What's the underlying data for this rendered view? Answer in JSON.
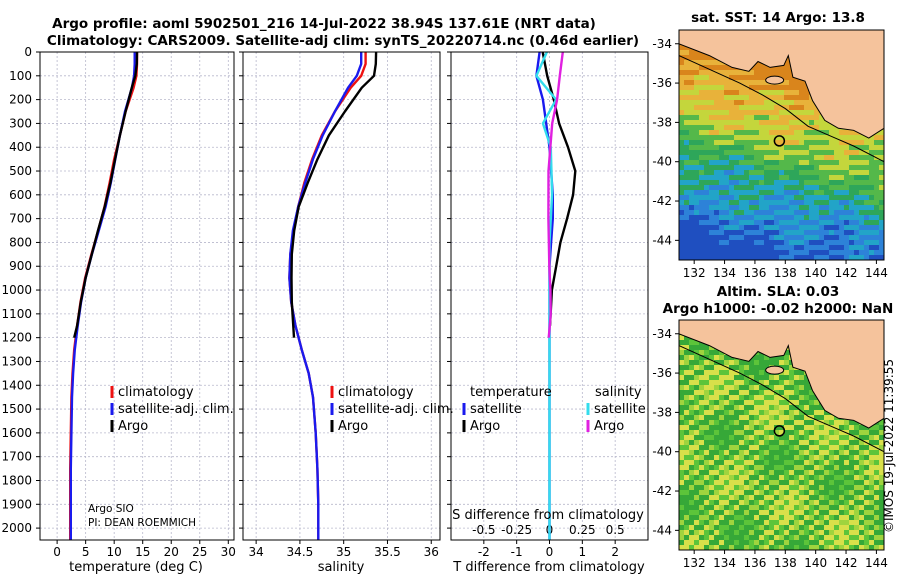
{
  "figure": {
    "title_line1": "Argo profile: aoml 5902501_216 14-Jul-2022 38.94S 137.61E (NRT data)",
    "title_line2": "Climatology: CARS2009. Satellite-adj clim: synTS_20220714.nc (0.46d earlier)",
    "credit": "©IMOS 19-Jul-2022 11:39:55",
    "argo_center": "Argo SIO",
    "pi_name": "PI: DEAN ROEMMICH"
  },
  "legends": {
    "climatology": "climatology",
    "satellite_adj": "satellite-adj. clim.",
    "argo": "Argo",
    "temperature_hdr": "temperature",
    "salinity_hdr": "salinity",
    "satellite": "satellite",
    "s_difference_label": "S difference from climatology"
  },
  "colors": {
    "climatology": "#ee1111",
    "satellite": "#1a1aee",
    "argo": "#000000",
    "sat_salinity": "#33dded",
    "argo_salinity": "#e020e0",
    "land": "#f5c39c",
    "grid": "#b8b8cc"
  },
  "chart_data": [
    {
      "type": "line",
      "xlabel": "temperature (deg C)",
      "ylabel": "",
      "xlim": [
        -3,
        31
      ],
      "ylim": [
        2050,
        0
      ],
      "xticks": [
        "0",
        "5",
        "10",
        "15",
        "20",
        "25",
        "30"
      ],
      "xtick_values": [
        0,
        5,
        10,
        15,
        20,
        25,
        30
      ],
      "yticks": [
        "0",
        "100",
        "200",
        "300",
        "400",
        "500",
        "600",
        "700",
        "800",
        "900",
        "1000",
        "1100",
        "1200",
        "1300",
        "1400",
        "1500",
        "1600",
        "1700",
        "1800",
        "1900",
        "2000"
      ],
      "ytick_values": [
        0,
        100,
        200,
        300,
        400,
        500,
        600,
        700,
        800,
        900,
        1000,
        1100,
        1200,
        1300,
        1400,
        1500,
        1600,
        1700,
        1800,
        1900,
        2000
      ],
      "series": [
        {
          "name": "climatology",
          "color": "#ee1111",
          "x": [
            14.0,
            14.0,
            13.9,
            13.4,
            12.0,
            11.0,
            10.0,
            9.2,
            8.3,
            7.2,
            6.0,
            4.9,
            4.1,
            3.5,
            3.0,
            2.7,
            2.5,
            2.4,
            2.3,
            2.3,
            2.3
          ],
          "y": [
            0,
            50,
            100,
            150,
            250,
            350,
            450,
            550,
            650,
            750,
            850,
            950,
            1050,
            1150,
            1250,
            1350,
            1450,
            1600,
            1750,
            1900,
            2050
          ]
        },
        {
          "name": "satellite-adj. clim.",
          "color": "#1a1aee",
          "x": [
            13.6,
            13.6,
            13.5,
            13.1,
            11.9,
            11.0,
            10.2,
            9.4,
            8.5,
            7.3,
            6.1,
            5.0,
            4.2,
            3.6,
            3.1,
            2.8,
            2.6,
            2.5,
            2.4,
            2.4,
            2.4
          ],
          "y": [
            0,
            50,
            100,
            150,
            250,
            350,
            450,
            550,
            650,
            750,
            850,
            950,
            1050,
            1150,
            1250,
            1350,
            1450,
            1600,
            1750,
            1900,
            2050
          ]
        },
        {
          "name": "Argo",
          "color": "#000000",
          "x": [
            13.8,
            13.8,
            13.7,
            13.2,
            12.1,
            11.1,
            10.3,
            9.5,
            8.5,
            7.3,
            6.2,
            5.1,
            4.3,
            3.7,
            3.2
          ],
          "y": [
            0,
            50,
            100,
            150,
            250,
            350,
            450,
            550,
            650,
            750,
            850,
            950,
            1050,
            1150,
            1200
          ]
        }
      ]
    },
    {
      "type": "line",
      "xlabel": "salinity",
      "xlim": [
        33.85,
        36.1
      ],
      "ylim": [
        2050,
        0
      ],
      "xticks": [
        "34",
        "34.5",
        "35",
        "35.5",
        "36"
      ],
      "xtick_values": [
        34,
        34.5,
        35,
        35.5,
        36
      ],
      "series": [
        {
          "name": "climatology",
          "color": "#ee1111",
          "x": [
            35.25,
            35.25,
            35.2,
            35.08,
            34.9,
            34.75,
            34.64,
            34.55,
            34.48,
            34.43,
            34.39,
            34.38,
            34.4,
            34.45,
            34.52,
            34.6,
            34.65,
            34.68,
            34.7,
            34.71,
            34.71
          ],
          "y": [
            0,
            50,
            100,
            150,
            250,
            350,
            450,
            550,
            650,
            750,
            850,
            950,
            1050,
            1150,
            1250,
            1350,
            1450,
            1600,
            1750,
            1900,
            2050
          ]
        },
        {
          "name": "satellite-adj. clim.",
          "color": "#1a1aee",
          "x": [
            35.2,
            35.2,
            35.15,
            35.05,
            34.9,
            34.76,
            34.65,
            34.56,
            34.48,
            34.42,
            34.39,
            34.38,
            34.4,
            34.45,
            34.52,
            34.6,
            34.65,
            34.68,
            34.7,
            34.71,
            34.71
          ],
          "y": [
            0,
            50,
            100,
            150,
            250,
            350,
            450,
            550,
            650,
            750,
            850,
            950,
            1050,
            1150,
            1250,
            1350,
            1450,
            1600,
            1750,
            1900,
            2050
          ]
        },
        {
          "name": "Argo",
          "color": "#000000",
          "x": [
            35.38,
            35.38,
            35.35,
            35.2,
            35.0,
            34.82,
            34.7,
            34.6,
            34.5,
            34.44,
            34.4,
            34.39,
            34.4,
            34.44
          ],
          "y": [
            0,
            50,
            100,
            150,
            250,
            350,
            450,
            550,
            650,
            750,
            850,
            950,
            1050,
            1200
          ]
        }
      ]
    },
    {
      "type": "line",
      "xlabel": "T difference from climatology",
      "xlim": [
        -3,
        3
      ],
      "ylim": [
        2050,
        0
      ],
      "xticks": [
        "-2",
        "-1",
        "0",
        "1",
        "2"
      ],
      "xtick_values": [
        -2,
        -1,
        0,
        1,
        2
      ],
      "s_ticks": [
        "-0.5",
        "-0.25",
        "0",
        "0.25",
        "0.5"
      ],
      "s_tick_values": [
        -0.5,
        -0.25,
        0,
        0.25,
        0.5
      ],
      "s_xlim": [
        -0.75,
        0.75
      ],
      "series": [
        {
          "name": "temperature satellite",
          "color": "#1a1aee",
          "axis": "T",
          "x": [
            -0.3,
            -0.4,
            -0.2,
            -0.1,
            0.0,
            0.05,
            0.1,
            0.1,
            0.05,
            0.0,
            0.0,
            0.0,
            0.0,
            0.0,
            0.0,
            0.0,
            0.0,
            0.0
          ],
          "y": [
            0,
            100,
            200,
            300,
            400,
            500,
            600,
            700,
            800,
            900,
            1000,
            1100,
            1200,
            1400,
            1600,
            1800,
            1950,
            2050
          ]
        },
        {
          "name": "temperature Argo",
          "color": "#000000",
          "axis": "T",
          "x": [
            -0.2,
            -0.1,
            0.1,
            0.3,
            0.6,
            0.8,
            0.7,
            0.5,
            0.3,
            0.2,
            0.1,
            0.05
          ],
          "y": [
            0,
            100,
            200,
            300,
            400,
            500,
            600,
            700,
            800,
            900,
            1000,
            1150
          ]
        },
        {
          "name": "salinity satellite",
          "color": "#33dded",
          "axis": "S",
          "x": [
            -0.02,
            -0.1,
            0.05,
            -0.05,
            0.01,
            0.02,
            0.0,
            0.0,
            0.0,
            0.0,
            0.0,
            0.0,
            0.0
          ],
          "y": [
            0,
            100,
            200,
            300,
            400,
            600,
            800,
            1000,
            1200,
            1500,
            1800,
            1950,
            2050
          ]
        },
        {
          "name": "salinity Argo",
          "color": "#e020e0",
          "axis": "S",
          "x": [
            0.1,
            0.07,
            0.05,
            0.02,
            0.0,
            0.0,
            0.0,
            0.0,
            0.0,
            0.0,
            0.0
          ],
          "y": [
            0,
            100,
            200,
            300,
            500,
            700,
            900,
            1000,
            1100,
            1150,
            1200
          ]
        }
      ]
    },
    {
      "type": "heatmap",
      "title": "sat. SST: 14 Argo: 13.8",
      "xticks": [
        "132",
        "134",
        "136",
        "138",
        "140",
        "142",
        "144"
      ],
      "yticks": [
        "-34",
        "-36",
        "-38",
        "-40",
        "-42",
        "-44"
      ],
      "lon_range": [
        131,
        144.5
      ],
      "lat_range": [
        -45,
        -33.3
      ],
      "argo_lon": 137.61,
      "argo_lat": -38.94
    },
    {
      "type": "heatmap",
      "title_line1": "Altim. SLA: 0.03",
      "title_line2": "Argo h1000: -0.02 h2000: NaN",
      "xticks": [
        "132",
        "134",
        "136",
        "138",
        "140",
        "142",
        "144"
      ],
      "yticks": [
        "-34",
        "-36",
        "-38",
        "-40",
        "-42",
        "-44"
      ],
      "lon_range": [
        131,
        144.5
      ],
      "lat_range": [
        -45,
        -33.3
      ],
      "argo_lon": 137.61,
      "argo_lat": -38.94
    }
  ]
}
